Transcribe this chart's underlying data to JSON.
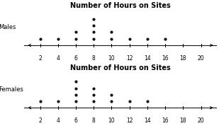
{
  "title": "Number of Hours on Sites",
  "males_data": {
    "2": 1,
    "4": 1,
    "6": 2,
    "8": 4,
    "10": 2,
    "12": 1,
    "14": 1,
    "16": 1
  },
  "females_data": {
    "2": 1,
    "4": 1,
    "6": 4,
    "8": 3,
    "10": 2,
    "12": 1,
    "14": 1
  },
  "xmin": 1,
  "xmax": 21,
  "xticks": [
    2,
    4,
    6,
    8,
    10,
    12,
    14,
    16,
    18,
    20
  ],
  "dot_color": "#111111",
  "label_males": "Males",
  "label_females": "Females",
  "title_fontsize": 7.0,
  "tick_fontsize": 5.5,
  "label_fontsize": 6.0
}
